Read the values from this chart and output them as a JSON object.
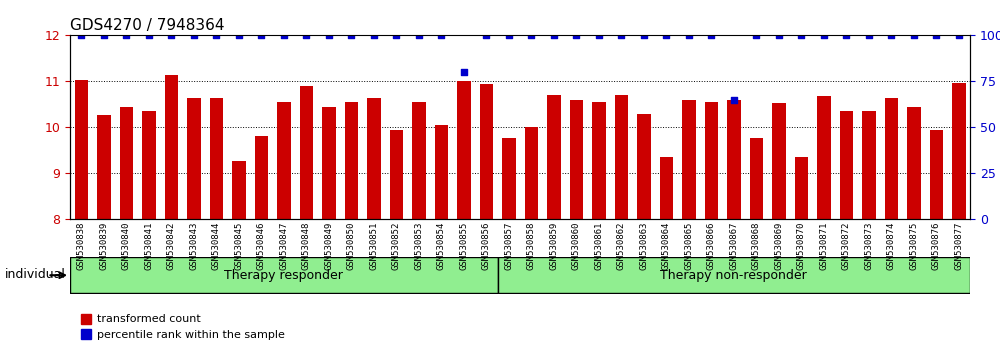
{
  "title": "GDS4270 / 7948364",
  "categories": [
    "GSM530838",
    "GSM530839",
    "GSM530840",
    "GSM530841",
    "GSM530842",
    "GSM530843",
    "GSM530844",
    "GSM530845",
    "GSM530846",
    "GSM530847",
    "GSM530848",
    "GSM530849",
    "GSM530850",
    "GSM530851",
    "GSM530852",
    "GSM530853",
    "GSM530854",
    "GSM530855",
    "GSM530856",
    "GSM530857",
    "GSM530858",
    "GSM530859",
    "GSM530860",
    "GSM530861",
    "GSM530862",
    "GSM530863",
    "GSM530864",
    "GSM530865",
    "GSM530866",
    "GSM530867",
    "GSM530868",
    "GSM530869",
    "GSM530870",
    "GSM530871",
    "GSM530872",
    "GSM530873",
    "GSM530874",
    "GSM530875",
    "GSM530876",
    "GSM530877"
  ],
  "bar_values": [
    11.02,
    10.26,
    10.45,
    10.35,
    11.15,
    10.63,
    10.63,
    9.28,
    9.82,
    10.55,
    10.9,
    10.45,
    10.55,
    10.63,
    9.95,
    10.55,
    10.05,
    11.0,
    10.95,
    9.78,
    10.02,
    10.7,
    10.6,
    10.55,
    10.7,
    10.3,
    9.35,
    10.6,
    10.55,
    10.6,
    9.78,
    10.53,
    9.36,
    10.68,
    10.35,
    10.35,
    10.65,
    10.45,
    9.95,
    10.97
  ],
  "percentile_values": [
    100,
    100,
    100,
    100,
    100,
    100,
    100,
    100,
    100,
    100,
    100,
    100,
    100,
    100,
    100,
    100,
    100,
    80,
    100,
    100,
    100,
    100,
    100,
    100,
    100,
    100,
    100,
    100,
    100,
    65,
    100,
    100,
    100,
    100,
    100,
    100,
    100,
    100,
    100,
    100
  ],
  "responder_groups": [
    {
      "label": "Therapy responder",
      "start": 0,
      "end": 19,
      "color": "#90EE90"
    },
    {
      "label": "Therapy non-responder",
      "start": 19,
      "end": 40,
      "color": "#90EE90"
    }
  ],
  "bar_color": "#cc0000",
  "dot_color": "#0000cc",
  "ylim_left": [
    8,
    12
  ],
  "ylim_right": [
    0,
    100
  ],
  "yticks_left": [
    8,
    9,
    10,
    11,
    12
  ],
  "yticks_right": [
    0,
    25,
    50,
    75,
    100
  ],
  "background_color": "#ffffff",
  "plot_bg_color": "#ffffff",
  "tick_color_left": "#cc0000",
  "tick_color_right": "#0000cc",
  "individual_label": "individual",
  "legend_items": [
    {
      "label": "transformed count",
      "color": "#cc0000",
      "marker": "s"
    },
    {
      "label": "percentile rank within the sample",
      "color": "#0000cc",
      "marker": "s"
    }
  ]
}
